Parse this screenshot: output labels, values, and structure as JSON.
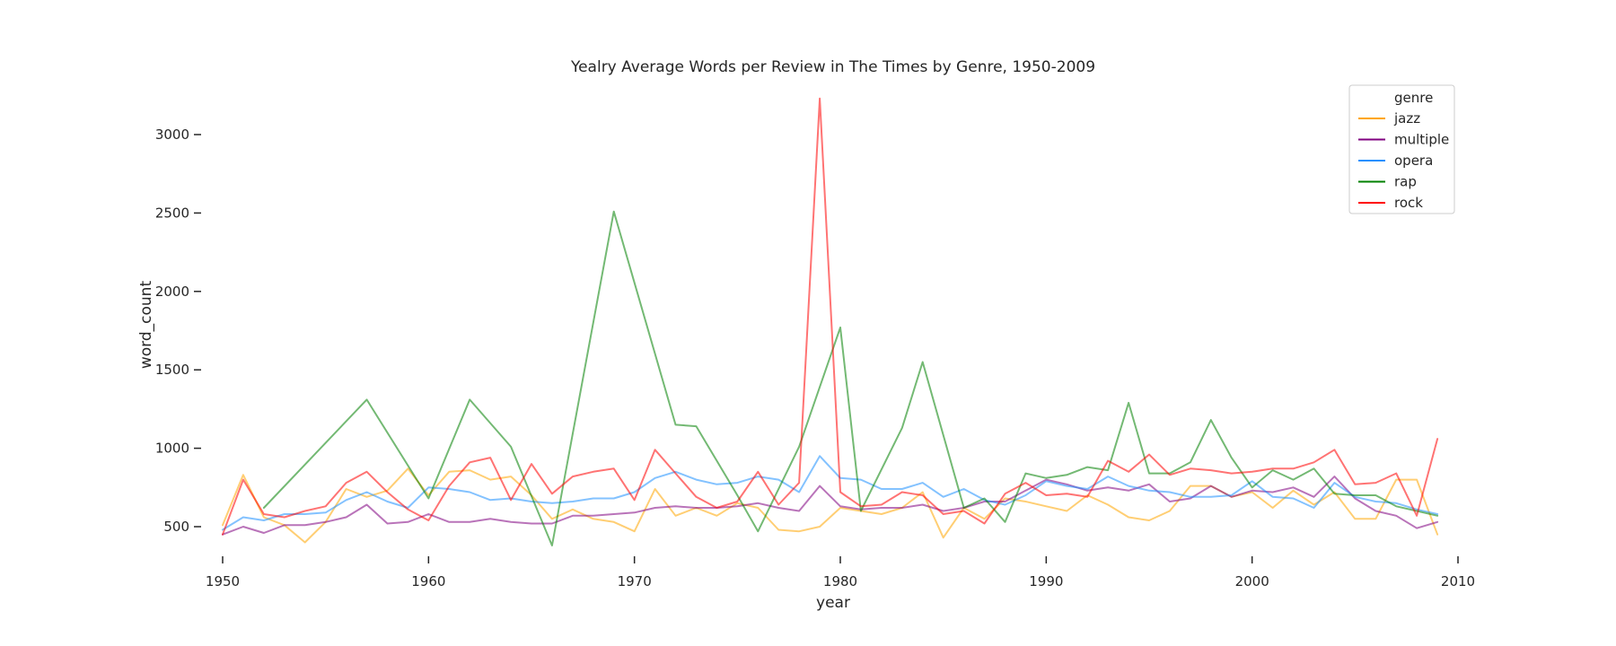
{
  "chart_data": {
    "type": "line",
    "title": "Yealry Average Words per Review in The Times by Genre, 1950-2009",
    "xlabel": "year",
    "ylabel": "word_count",
    "xlim": [
      1950,
      2010
    ],
    "ylim": [
      250,
      3300
    ],
    "xticks": [
      1950,
      1960,
      1970,
      1980,
      1990,
      2000,
      2010
    ],
    "yticks": [
      500,
      1000,
      1500,
      2000,
      2500,
      3000
    ],
    "grid": false,
    "legend": {
      "title": "genre",
      "placement": "top-right"
    },
    "series": [
      {
        "name": "jazz",
        "color": "#ffa500",
        "x": [
          1950,
          1951,
          1952,
          1953,
          1954,
          1955,
          1956,
          1957,
          1958,
          1959,
          1960,
          1961,
          1962,
          1963,
          1964,
          1965,
          1966,
          1967,
          1968,
          1969,
          1970,
          1971,
          1972,
          1973,
          1974,
          1975,
          1976,
          1977,
          1978,
          1979,
          1980,
          1981,
          1982,
          1983,
          1984,
          1985,
          1986,
          1987,
          1988,
          1989,
          1990,
          1991,
          1992,
          1993,
          1994,
          1995,
          1996,
          1997,
          1998,
          1999,
          2000,
          2001,
          2002,
          2003,
          2004,
          2005,
          2006,
          2007,
          2008,
          2009
        ],
        "y": [
          510,
          830,
          560,
          510,
          400,
          530,
          740,
          690,
          730,
          870,
          700,
          850,
          860,
          800,
          820,
          700,
          550,
          610,
          550,
          530,
          470,
          740,
          570,
          620,
          570,
          650,
          620,
          480,
          470,
          500,
          620,
          600,
          580,
          620,
          720,
          430,
          620,
          550,
          680,
          660,
          630,
          600,
          700,
          640,
          560,
          540,
          600,
          760,
          760,
          690,
          720,
          620,
          730,
          640,
          720,
          550,
          550,
          800,
          800,
          450
        ]
      },
      {
        "name": "multiple",
        "color": "#800080",
        "x": [
          1950,
          1951,
          1952,
          1953,
          1954,
          1955,
          1956,
          1957,
          1958,
          1959,
          1960,
          1961,
          1962,
          1963,
          1964,
          1965,
          1966,
          1967,
          1968,
          1969,
          1970,
          1971,
          1972,
          1973,
          1974,
          1975,
          1976,
          1977,
          1978,
          1979,
          1980,
          1981,
          1982,
          1983,
          1984,
          1985,
          1986,
          1987,
          1988,
          1989,
          1990,
          1991,
          1992,
          1993,
          1994,
          1995,
          1996,
          1997,
          1998,
          1999,
          2000,
          2001,
          2002,
          2003,
          2004,
          2005,
          2006,
          2007,
          2008,
          2009
        ],
        "y": [
          450,
          500,
          460,
          510,
          510,
          530,
          560,
          640,
          520,
          530,
          580,
          530,
          530,
          550,
          530,
          520,
          520,
          570,
          570,
          580,
          590,
          620,
          630,
          620,
          620,
          630,
          650,
          620,
          600,
          760,
          630,
          610,
          620,
          620,
          640,
          600,
          620,
          660,
          660,
          730,
          800,
          770,
          730,
          750,
          730,
          770,
          660,
          680,
          760,
          690,
          730,
          720,
          750,
          690,
          820,
          680,
          600,
          570,
          490,
          530
        ]
      },
      {
        "name": "opera",
        "color": "#1e90ff",
        "x": [
          1950,
          1951,
          1952,
          1953,
          1954,
          1955,
          1956,
          1957,
          1958,
          1959,
          1960,
          1961,
          1962,
          1963,
          1964,
          1965,
          1966,
          1967,
          1968,
          1969,
          1970,
          1971,
          1972,
          1973,
          1974,
          1975,
          1976,
          1977,
          1978,
          1979,
          1980,
          1981,
          1982,
          1983,
          1984,
          1985,
          1986,
          1987,
          1988,
          1989,
          1990,
          1991,
          1992,
          1993,
          1994,
          1995,
          1996,
          1997,
          1998,
          1999,
          2000,
          2001,
          2002,
          2003,
          2004,
          2005,
          2006,
          2007,
          2008,
          2009
        ],
        "y": [
          480,
          560,
          540,
          580,
          580,
          590,
          670,
          720,
          660,
          620,
          750,
          740,
          720,
          670,
          680,
          660,
          650,
          660,
          680,
          680,
          720,
          810,
          850,
          800,
          770,
          780,
          820,
          800,
          720,
          950,
          810,
          800,
          740,
          740,
          780,
          690,
          740,
          670,
          640,
          700,
          790,
          760,
          740,
          820,
          760,
          730,
          720,
          690,
          690,
          700,
          790,
          690,
          680,
          620,
          780,
          690,
          660,
          650,
          610,
          580
        ]
      },
      {
        "name": "rap",
        "color": "#008000",
        "x": [
          1952,
          1957,
          1960,
          1962,
          1964,
          1966,
          1969,
          1972,
          1973,
          1975,
          1976,
          1978,
          1980,
          1981,
          1983,
          1984,
          1986,
          1987,
          1988,
          1989,
          1990,
          1991,
          1992,
          1993,
          1994,
          1995,
          1996,
          1997,
          1998,
          1999,
          2000,
          2001,
          2002,
          2003,
          2004,
          2005,
          2006,
          2007,
          2008,
          2009
        ],
        "y": [
          620,
          1310,
          680,
          1310,
          1010,
          380,
          2510,
          1150,
          1140,
          700,
          470,
          1010,
          1770,
          600,
          1130,
          1550,
          620,
          680,
          530,
          840,
          810,
          830,
          880,
          860,
          1290,
          840,
          840,
          910,
          1180,
          940,
          750,
          860,
          800,
          870,
          710,
          700,
          700,
          630,
          600,
          570
        ]
      },
      {
        "name": "rock",
        "color": "#ff0000",
        "x": [
          1950,
          1951,
          1952,
          1953,
          1954,
          1955,
          1956,
          1957,
          1958,
          1959,
          1960,
          1961,
          1962,
          1963,
          1964,
          1965,
          1966,
          1967,
          1968,
          1969,
          1970,
          1971,
          1972,
          1973,
          1974,
          1975,
          1976,
          1977,
          1978,
          1979,
          1980,
          1981,
          1982,
          1983,
          1984,
          1985,
          1986,
          1987,
          1988,
          1989,
          1990,
          1991,
          1992,
          1993,
          1994,
          1995,
          1996,
          1997,
          1998,
          1999,
          2000,
          2001,
          2002,
          2003,
          2004,
          2005,
          2006,
          2007,
          2008,
          2009
        ],
        "y": [
          450,
          800,
          580,
          560,
          600,
          630,
          780,
          850,
          720,
          610,
          540,
          760,
          910,
          940,
          670,
          900,
          710,
          820,
          850,
          870,
          670,
          990,
          840,
          690,
          620,
          660,
          850,
          640,
          780,
          3230,
          720,
          630,
          640,
          720,
          700,
          580,
          600,
          520,
          710,
          780,
          700,
          710,
          690,
          920,
          850,
          960,
          830,
          870,
          860,
          840,
          850,
          870,
          870,
          910,
          990,
          770,
          780,
          840,
          570,
          1060
        ]
      }
    ]
  }
}
